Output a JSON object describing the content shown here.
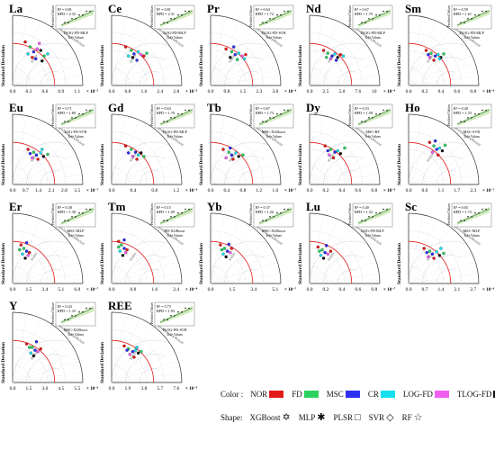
{
  "legend": {
    "color_label": "Color :",
    "shape_label": "Shape:",
    "colors": [
      {
        "name": "NOR",
        "hex": "#e41b1b"
      },
      {
        "name": "FD",
        "hex": "#2bd15f"
      },
      {
        "name": "MSC",
        "hex": "#2d2ff0"
      },
      {
        "name": "CR",
        "hex": "#14e0f0"
      },
      {
        "name": "LOG-FD",
        "hex": "#f05ef0"
      },
      {
        "name": "TLOG-FD",
        "hex": "#111111"
      }
    ],
    "shapes": [
      {
        "name": "XGBoost",
        "icon": "hexagram-icon",
        "glyph": "✡"
      },
      {
        "name": "MLP",
        "icon": "asterisk-icon",
        "glyph": "✱"
      },
      {
        "name": "PLSR",
        "icon": "square-icon",
        "glyph": "□"
      },
      {
        "name": "SVR",
        "icon": "diamond-icon",
        "glyph": "◇"
      },
      {
        "name": "RF",
        "icon": "star-icon",
        "glyph": "☆"
      }
    ]
  },
  "common_text": {
    "ylabel": "Standard Deviation",
    "inset_ylabel": "Predicted Values",
    "inset_xlabel": "True Values",
    "corr_label": "Correlation Coefficient",
    "rmsd_label": "RMSD"
  },
  "chart_data": [
    {
      "type": "scatter",
      "element": "La",
      "best_model": "TLOG-FD-MLP",
      "r2_text": "R² = 0.81",
      "rpd_text": "RPD = 2.35",
      "x_ticks": [
        "0.0",
        "0.3",
        "0.6",
        "0.9",
        "1.1"
      ],
      "x_unit": "× 10⁻⁵",
      "points": [
        [
          0.18,
          0.62
        ],
        [
          0.25,
          0.55
        ],
        [
          0.3,
          0.48
        ],
        [
          0.22,
          0.45
        ],
        [
          0.35,
          0.52
        ],
        [
          0.4,
          0.5
        ],
        [
          0.28,
          0.4
        ],
        [
          0.45,
          0.42
        ],
        [
          0.33,
          0.38
        ],
        [
          0.5,
          0.45
        ],
        [
          0.38,
          0.6
        ],
        [
          0.42,
          0.35
        ]
      ]
    },
    {
      "type": "scatter",
      "element": "Ce",
      "best_model": "LOG-FD-MLP",
      "r2_text": "R² = 0.81",
      "rpd_text": "RPD = 2.31",
      "x_ticks": [
        "0.0",
        "0.8",
        "1.6",
        "2.4",
        "2.8"
      ],
      "x_unit": "× 10⁻⁵",
      "points": [
        [
          0.2,
          0.55
        ],
        [
          0.28,
          0.5
        ],
        [
          0.32,
          0.45
        ],
        [
          0.38,
          0.48
        ],
        [
          0.42,
          0.44
        ],
        [
          0.3,
          0.4
        ],
        [
          0.46,
          0.42
        ],
        [
          0.5,
          0.46
        ],
        [
          0.36,
          0.36
        ],
        [
          0.24,
          0.42
        ]
      ]
    },
    {
      "type": "scatter",
      "element": "Pr",
      "best_model": "TLOG-FD-SVR",
      "r2_text": "R² = 0.64",
      "rpd_text": "RPD = 1.72",
      "x_ticks": [
        "0.0",
        "0.8",
        "1.5",
        "2.3",
        "3.0"
      ],
      "x_unit": "× 10⁻⁶",
      "points": [
        [
          0.22,
          0.52
        ],
        [
          0.3,
          0.48
        ],
        [
          0.35,
          0.44
        ],
        [
          0.4,
          0.46
        ],
        [
          0.45,
          0.42
        ],
        [
          0.28,
          0.4
        ],
        [
          0.5,
          0.44
        ],
        [
          0.38,
          0.37
        ],
        [
          0.33,
          0.55
        ],
        [
          0.48,
          0.38
        ]
      ]
    },
    {
      "type": "scatter",
      "element": "Nd",
      "best_model": "TLOG-FD-MLP",
      "r2_text": "R² = 0.67",
      "rpd_text": "RPD = 1.79",
      "x_ticks": [
        "0.0",
        "2.5",
        "5.0",
        "7.6",
        "10"
      ],
      "x_unit": "× 10⁻⁶",
      "points": [
        [
          0.2,
          0.5
        ],
        [
          0.26,
          0.46
        ],
        [
          0.32,
          0.42
        ],
        [
          0.36,
          0.45
        ],
        [
          0.3,
          0.38
        ],
        [
          0.4,
          0.4
        ],
        [
          0.44,
          0.44
        ],
        [
          0.24,
          0.4
        ],
        [
          0.38,
          0.36
        ],
        [
          0.48,
          0.42
        ]
      ]
    },
    {
      "type": "scatter",
      "element": "Sm",
      "best_model": "TLOG-FD-MLP",
      "r2_text": "R² = 0.59",
      "rpd_text": "RPD = 1.61",
      "x_ticks": [
        "0.0",
        "0.2",
        "0.4",
        "0.6",
        "0.8"
      ],
      "x_unit": "× 10⁻⁶",
      "points": [
        [
          0.25,
          0.5
        ],
        [
          0.32,
          0.46
        ],
        [
          0.38,
          0.42
        ],
        [
          0.42,
          0.44
        ],
        [
          0.3,
          0.4
        ],
        [
          0.46,
          0.4
        ],
        [
          0.36,
          0.36
        ],
        [
          0.5,
          0.45
        ],
        [
          0.28,
          0.44
        ],
        [
          0.44,
          0.38
        ]
      ]
    },
    {
      "type": "scatter",
      "element": "Eu",
      "best_model": "LOG-FD-SVR",
      "r2_text": "R² = 0.71",
      "rpd_text": "RPD = 1.89",
      "x_ticks": [
        "0.0",
        "0.7",
        "1.4",
        "2.1",
        "2.8",
        "3.5"
      ],
      "x_unit": "× 10⁻⁷",
      "points": [
        [
          0.22,
          0.5
        ],
        [
          0.3,
          0.46
        ],
        [
          0.34,
          0.42
        ],
        [
          0.4,
          0.45
        ],
        [
          0.28,
          0.38
        ],
        [
          0.44,
          0.4
        ],
        [
          0.36,
          0.36
        ],
        [
          0.5,
          0.43
        ],
        [
          0.25,
          0.44
        ],
        [
          0.42,
          0.5
        ]
      ]
    },
    {
      "type": "scatter",
      "element": "Gd",
      "best_model": "TLOG-FD-MLP",
      "r2_text": "R² = 0.63",
      "rpd_text": "RPD = 1.70",
      "x_ticks": [
        "0.0",
        "0.4",
        "0.8",
        "1.2"
      ],
      "x_unit": "× 10⁻⁶",
      "points": [
        [
          0.2,
          0.55
        ],
        [
          0.28,
          0.5
        ],
        [
          0.34,
          0.46
        ],
        [
          0.38,
          0.42
        ],
        [
          0.3,
          0.4
        ],
        [
          0.42,
          0.45
        ],
        [
          0.36,
          0.36
        ],
        [
          0.46,
          0.4
        ],
        [
          0.24,
          0.45
        ]
      ]
    },
    {
      "type": "scatter",
      "element": "Tb",
      "best_model": "MSC-XGBoost",
      "r2_text": "R² = 0.67",
      "rpd_text": "RPD = 1.73",
      "x_ticks": [
        "0.0",
        "0.4",
        "0.8",
        "1.2",
        "1.6"
      ],
      "x_unit": "× 10⁻⁷",
      "points": [
        [
          0.18,
          0.5
        ],
        [
          0.26,
          0.46
        ],
        [
          0.3,
          0.42
        ],
        [
          0.36,
          0.45
        ],
        [
          0.22,
          0.38
        ],
        [
          0.4,
          0.4
        ],
        [
          0.32,
          0.36
        ],
        [
          0.46,
          0.42
        ],
        [
          0.28,
          0.52
        ]
      ]
    },
    {
      "type": "scatter",
      "element": "Dy",
      "best_model": "MSC-RF",
      "r2_text": "R² = 0.53",
      "rpd_text": "RPD = 1.58",
      "x_ticks": [
        "0.0",
        "0.2",
        "0.4",
        "0.6",
        "0.8"
      ],
      "x_unit": "× 10⁻⁶",
      "points": [
        [
          0.22,
          0.55
        ],
        [
          0.3,
          0.5
        ],
        [
          0.36,
          0.46
        ],
        [
          0.4,
          0.48
        ],
        [
          0.28,
          0.42
        ],
        [
          0.44,
          0.44
        ],
        [
          0.34,
          0.38
        ],
        [
          0.5,
          0.52
        ],
        [
          0.26,
          0.48
        ]
      ]
    },
    {
      "type": "scatter",
      "element": "Ho",
      "best_model": "MSC-SVR",
      "r2_text": "R² = 0.40",
      "rpd_text": "RPD = 1.33",
      "x_ticks": [
        "0.0",
        "0.6",
        "1.1",
        "1.7",
        "2.3"
      ],
      "x_unit": "× 10⁻⁷",
      "points": [
        [
          0.3,
          0.6
        ],
        [
          0.36,
          0.55
        ],
        [
          0.4,
          0.5
        ],
        [
          0.44,
          0.52
        ],
        [
          0.34,
          0.46
        ],
        [
          0.48,
          0.48
        ],
        [
          0.42,
          0.42
        ],
        [
          0.52,
          0.56
        ],
        [
          0.38,
          0.62
        ]
      ]
    },
    {
      "type": "scatter",
      "element": "Er",
      "best_model": "MSC-MLP",
      "r2_text": "R² = 0.38",
      "rpd_text": "RPD = 1.38",
      "x_ticks": [
        "0.0",
        "1.5",
        "3.4",
        "5.1",
        "6.8"
      ],
      "x_unit": "× 10⁻⁷",
      "points": [
        [
          0.12,
          0.55
        ],
        [
          0.16,
          0.5
        ],
        [
          0.2,
          0.46
        ],
        [
          0.14,
          0.42
        ],
        [
          0.22,
          0.4
        ],
        [
          0.18,
          0.36
        ],
        [
          0.24,
          0.44
        ],
        [
          0.1,
          0.48
        ],
        [
          0.2,
          0.58
        ]
      ]
    },
    {
      "type": "scatter",
      "element": "Tm",
      "best_model": "FD-XGBoost",
      "r2_text": "R² = 0.15",
      "rpd_text": "RPD = 1.09",
      "x_ticks": [
        "0.0",
        "0.8",
        "1.6",
        "2.4"
      ],
      "x_unit": "× 10⁻⁸",
      "points": [
        [
          0.1,
          0.6
        ],
        [
          0.14,
          0.55
        ],
        [
          0.18,
          0.5
        ],
        [
          0.12,
          0.46
        ],
        [
          0.2,
          0.44
        ],
        [
          0.16,
          0.4
        ],
        [
          0.22,
          0.48
        ],
        [
          0.1,
          0.52
        ],
        [
          0.18,
          0.62
        ]
      ]
    },
    {
      "type": "scatter",
      "element": "Yb",
      "best_model": "MSC-XGBoost",
      "r2_text": "R² = 0.37",
      "rpd_text": "RPD = 1.26",
      "x_ticks": [
        "0.0",
        "1.5",
        "3.4",
        "5.1"
      ],
      "x_unit": "× 10⁻⁷",
      "points": [
        [
          0.14,
          0.55
        ],
        [
          0.2,
          0.5
        ],
        [
          0.24,
          0.46
        ],
        [
          0.18,
          0.42
        ],
        [
          0.28,
          0.44
        ],
        [
          0.22,
          0.38
        ],
        [
          0.3,
          0.5
        ],
        [
          0.16,
          0.48
        ],
        [
          0.26,
          0.56
        ]
      ]
    },
    {
      "type": "scatter",
      "element": "Lu",
      "best_model": "LOG-FD-MLP",
      "r2_text": "R² = 0.40",
      "rpd_text": "RPD = 1.32",
      "x_ticks": [
        "0.0",
        "0.2",
        "0.4",
        "0.6",
        "0.8"
      ],
      "x_unit": "× 10⁻⁷",
      "points": [
        [
          0.12,
          0.52
        ],
        [
          0.18,
          0.48
        ],
        [
          0.22,
          0.44
        ],
        [
          0.16,
          0.4
        ],
        [
          0.26,
          0.42
        ],
        [
          0.2,
          0.36
        ],
        [
          0.3,
          0.46
        ],
        [
          0.14,
          0.46
        ],
        [
          0.24,
          0.54
        ]
      ]
    },
    {
      "type": "scatter",
      "element": "Sc",
      "best_model": "MSC-MLP",
      "r2_text": "R² = 0.65",
      "rpd_text": "RPD = 1.73",
      "x_ticks": [
        "0.0",
        "0.7",
        "1.4",
        "2.1",
        "2.7"
      ],
      "x_unit": "× 10⁻⁶",
      "points": [
        [
          0.22,
          0.5
        ],
        [
          0.3,
          0.46
        ],
        [
          0.34,
          0.42
        ],
        [
          0.4,
          0.45
        ],
        [
          0.28,
          0.38
        ],
        [
          0.44,
          0.4
        ],
        [
          0.36,
          0.36
        ],
        [
          0.5,
          0.43
        ],
        [
          0.26,
          0.44
        ],
        [
          0.46,
          0.5
        ]
      ]
    },
    {
      "type": "scatter",
      "element": "Y",
      "best_model": "MSC-XGBoost",
      "r2_text": "R² = 0.43",
      "rpd_text": "RPD = 1.33",
      "x_ticks": [
        "0.0",
        "1.5",
        "3.0",
        "4.5",
        "5.5"
      ],
      "x_unit": "× 10⁻⁶",
      "points": [
        [
          0.2,
          0.55
        ],
        [
          0.28,
          0.5
        ],
        [
          0.32,
          0.46
        ],
        [
          0.26,
          0.42
        ],
        [
          0.36,
          0.44
        ],
        [
          0.3,
          0.38
        ],
        [
          0.4,
          0.48
        ],
        [
          0.24,
          0.5
        ],
        [
          0.34,
          0.58
        ]
      ]
    },
    {
      "type": "scatter",
      "element": "REE",
      "best_model": "TLOG-FD-SVR",
      "r2_text": "R² = 0.73",
      "rpd_text": "RPD = 1.93",
      "x_ticks": [
        "0.0",
        "1.9",
        "3.8",
        "5.7",
        "7.6"
      ],
      "x_unit": "× 10⁻⁵",
      "points": [
        [
          0.18,
          0.52
        ],
        [
          0.24,
          0.48
        ],
        [
          0.3,
          0.44
        ],
        [
          0.34,
          0.46
        ],
        [
          0.26,
          0.4
        ],
        [
          0.38,
          0.42
        ],
        [
          0.32,
          0.36
        ],
        [
          0.42,
          0.44
        ],
        [
          0.22,
          0.46
        ],
        [
          0.36,
          0.5
        ]
      ]
    }
  ]
}
